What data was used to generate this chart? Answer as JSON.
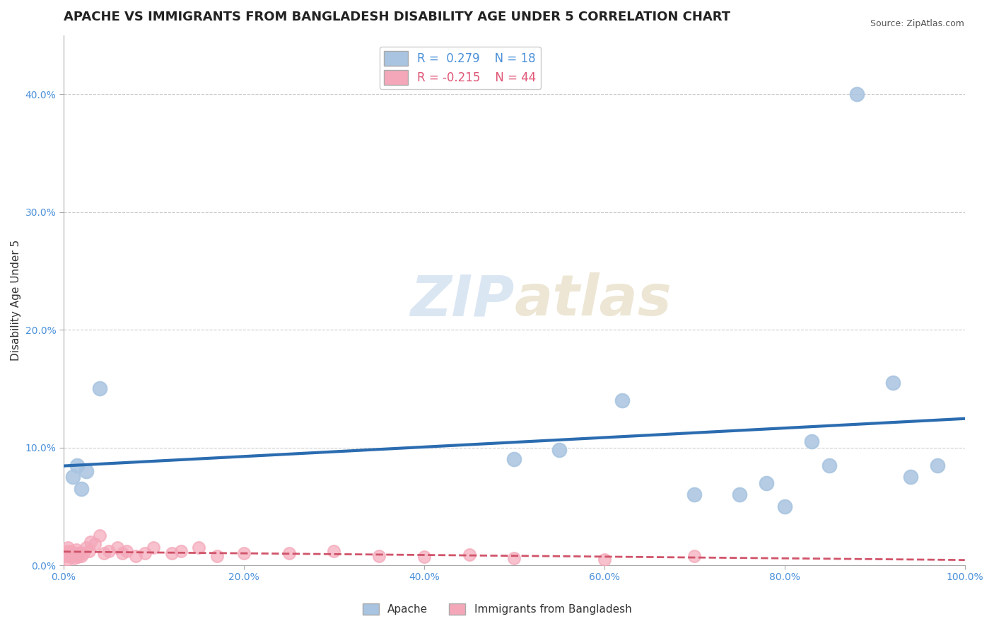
{
  "title": "APACHE VS IMMIGRANTS FROM BANGLADESH DISABILITY AGE UNDER 5 CORRELATION CHART",
  "source_text": "Source: ZipAtlas.com",
  "xlabel": "",
  "ylabel": "Disability Age Under 5",
  "watermark_zip": "ZIP",
  "watermark_atlas": "atlas",
  "xlim": [
    0.0,
    1.0
  ],
  "ylim": [
    0.0,
    0.45
  ],
  "xticks": [
    0.0,
    0.2,
    0.4,
    0.6,
    0.8,
    1.0
  ],
  "xticklabels": [
    "0.0%",
    "20.0%",
    "40.0%",
    "60.0%",
    "80.0%",
    "100.0%"
  ],
  "yticks": [
    0.0,
    0.1,
    0.2,
    0.3,
    0.4
  ],
  "yticklabels": [
    "0.0%",
    "10.0%",
    "20.0%",
    "30.0%",
    "40.0%"
  ],
  "apache_R": 0.279,
  "apache_N": 18,
  "bangladesh_R": -0.215,
  "bangladesh_N": 44,
  "apache_color": "#a8c4e0",
  "apache_line_color": "#2b6cb0",
  "bangladesh_color": "#f4a7b9",
  "bangladesh_line_color": "#d0546a",
  "apache_x": [
    0.01,
    0.015,
    0.02,
    0.025,
    0.04,
    0.5,
    0.55,
    0.62,
    0.7,
    0.75,
    0.78,
    0.8,
    0.83,
    0.85,
    0.88,
    0.92,
    0.94,
    0.97
  ],
  "apache_y": [
    0.075,
    0.085,
    0.065,
    0.08,
    0.15,
    0.09,
    0.098,
    0.14,
    0.06,
    0.06,
    0.07,
    0.05,
    0.105,
    0.085,
    0.4,
    0.155,
    0.075,
    0.085
  ],
  "bangladesh_x": [
    0.001,
    0.002,
    0.003,
    0.004,
    0.005,
    0.006,
    0.007,
    0.008,
    0.009,
    0.01,
    0.012,
    0.013,
    0.014,
    0.015,
    0.016,
    0.018,
    0.02,
    0.022,
    0.025,
    0.028,
    0.03,
    0.035,
    0.04,
    0.045,
    0.05,
    0.06,
    0.065,
    0.07,
    0.08,
    0.09,
    0.1,
    0.12,
    0.13,
    0.15,
    0.17,
    0.2,
    0.25,
    0.3,
    0.35,
    0.4,
    0.45,
    0.5,
    0.6,
    0.7
  ],
  "bangladesh_y": [
    0.01,
    0.008,
    0.012,
    0.005,
    0.015,
    0.008,
    0.01,
    0.012,
    0.007,
    0.009,
    0.006,
    0.01,
    0.013,
    0.009,
    0.007,
    0.011,
    0.008,
    0.01,
    0.015,
    0.012,
    0.02,
    0.018,
    0.025,
    0.01,
    0.012,
    0.015,
    0.01,
    0.012,
    0.008,
    0.01,
    0.015,
    0.01,
    0.012,
    0.015,
    0.008,
    0.01,
    0.01,
    0.012,
    0.008,
    0.007,
    0.009,
    0.006,
    0.005,
    0.008
  ],
  "background_color": "#ffffff",
  "grid_color": "#cccccc",
  "title_fontsize": 13,
  "axis_label_fontsize": 11,
  "tick_fontsize": 10,
  "legend_fontsize": 12,
  "tick_color": "#4a90d9",
  "legend_apache_color": "#4a90d9",
  "legend_bangladesh_color": "#e05575"
}
